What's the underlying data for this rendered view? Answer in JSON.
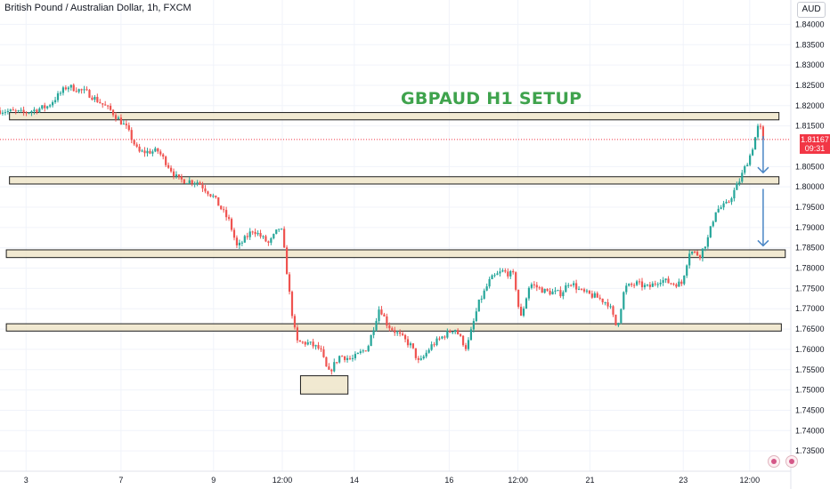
{
  "header": {
    "title": "British Pound / Australian Dollar, 1h, FXCM",
    "currency": "AUD"
  },
  "annotation": {
    "label": "GBPAUD H1 SETUP"
  },
  "price_tag": {
    "price": "1.81167",
    "countdown": "09:31"
  },
  "colors": {
    "up": "#26a69a",
    "down": "#ef5350",
    "zone_fill": "#ede3c6",
    "zone_stroke": "#1c1c1c",
    "arrow": "#4a86c5",
    "label": "#3fa34d",
    "price_line": "#f23645"
  },
  "footer_icons": [
    "globe-icon",
    "flag-icon"
  ],
  "chart_data": {
    "type": "candlestick",
    "title": "British Pound / Australian Dollar, 1h, FXCM",
    "ylim": [
      1.73,
      1.846
    ],
    "y_ticks": [
      "1.84000",
      "1.83500",
      "1.83000",
      "1.82500",
      "1.82000",
      "1.81500",
      "1.80500",
      "1.80000",
      "1.79500",
      "1.79000",
      "1.78500",
      "1.78000",
      "1.77500",
      "1.77000",
      "1.76500",
      "1.76000",
      "1.75500",
      "1.75000",
      "1.74500",
      "1.74000",
      "1.73500"
    ],
    "x_ticks": [
      {
        "label": "3",
        "t": 0.033
      },
      {
        "label": "7",
        "t": 0.153
      },
      {
        "label": "9",
        "t": 0.27
      },
      {
        "label": "12:00",
        "t": 0.357
      },
      {
        "label": "14",
        "t": 0.448
      },
      {
        "label": "16",
        "t": 0.568
      },
      {
        "label": "12:00",
        "t": 0.655
      },
      {
        "label": "21",
        "t": 0.746
      },
      {
        "label": "23",
        "t": 0.864
      },
      {
        "label": "12:00",
        "t": 0.948
      }
    ],
    "price_path": [
      [
        0.0,
        1.8188
      ],
      [
        0.03,
        1.8182
      ],
      [
        0.06,
        1.8198
      ],
      [
        0.085,
        1.8248
      ],
      [
        0.11,
        1.8232
      ],
      [
        0.14,
        1.8188
      ],
      [
        0.16,
        1.8145
      ],
      [
        0.175,
        1.8085
      ],
      [
        0.2,
        1.8088
      ],
      [
        0.225,
        1.8018
      ],
      [
        0.25,
        1.8012
      ],
      [
        0.27,
        1.7975
      ],
      [
        0.29,
        1.7915
      ],
      [
        0.3,
        1.785
      ],
      [
        0.32,
        1.7895
      ],
      [
        0.34,
        1.786
      ],
      [
        0.355,
        1.7905
      ],
      [
        0.36,
        1.7835
      ],
      [
        0.368,
        1.7705
      ],
      [
        0.375,
        1.7618
      ],
      [
        0.39,
        1.7615
      ],
      [
        0.405,
        1.76
      ],
      [
        0.415,
        1.754
      ],
      [
        0.43,
        1.7585
      ],
      [
        0.445,
        1.7575
      ],
      [
        0.465,
        1.7605
      ],
      [
        0.48,
        1.7705
      ],
      [
        0.49,
        1.766
      ],
      [
        0.505,
        1.7635
      ],
      [
        0.52,
        1.7608
      ],
      [
        0.53,
        1.7565
      ],
      [
        0.545,
        1.7608
      ],
      [
        0.56,
        1.7632
      ],
      [
        0.575,
        1.7652
      ],
      [
        0.59,
        1.7602
      ],
      [
        0.605,
        1.7712
      ],
      [
        0.62,
        1.7772
      ],
      [
        0.635,
        1.7792
      ],
      [
        0.65,
        1.7782
      ],
      [
        0.658,
        1.7672
      ],
      [
        0.67,
        1.7762
      ],
      [
        0.69,
        1.7742
      ],
      [
        0.71,
        1.7738
      ],
      [
        0.72,
        1.7768
      ],
      [
        0.735,
        1.7742
      ],
      [
        0.755,
        1.7728
      ],
      [
        0.77,
        1.7712
      ],
      [
        0.78,
        1.7652
      ],
      [
        0.79,
        1.7752
      ],
      [
        0.805,
        1.7762
      ],
      [
        0.82,
        1.7752
      ],
      [
        0.835,
        1.7772
      ],
      [
        0.85,
        1.7762
      ],
      [
        0.862,
        1.7762
      ],
      [
        0.872,
        1.7842
      ],
      [
        0.885,
        1.7832
      ],
      [
        0.895,
        1.7872
      ],
      [
        0.905,
        1.7942
      ],
      [
        0.92,
        1.7958
      ],
      [
        0.935,
        1.8015
      ],
      [
        0.95,
        1.8085
      ],
      [
        0.96,
        1.8158
      ],
      [
        0.965,
        1.8112
      ]
    ],
    "zones": [
      {
        "t_start": 0.012,
        "t_end": 0.985,
        "y_top": 1.8183,
        "y_bottom": 1.8165
      },
      {
        "t_start": 0.012,
        "t_end": 0.985,
        "y_top": 1.8025,
        "y_bottom": 1.8007
      },
      {
        "t_start": 0.008,
        "t_end": 0.993,
        "y_top": 1.7845,
        "y_bottom": 1.7826
      },
      {
        "t_start": 0.008,
        "t_end": 0.988,
        "y_top": 1.7663,
        "y_bottom": 1.7645
      },
      {
        "t_start": 0.38,
        "t_end": 0.44,
        "y_top": 1.7535,
        "y_bottom": 1.749
      }
    ],
    "arrows": [
      {
        "t": 0.965,
        "y_from": 1.8125,
        "y_to": 1.8035
      },
      {
        "t": 0.965,
        "y_from": 1.7995,
        "y_to": 1.7855
      }
    ],
    "current_price": 1.81167,
    "grid": true
  }
}
